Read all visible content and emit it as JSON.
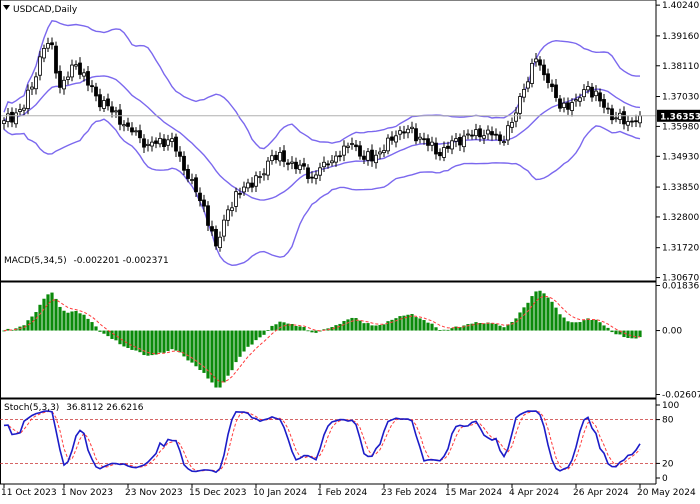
{
  "chart_data": {
    "type": "candlestick",
    "symbol_label": "USDCAD,Daily",
    "current_price": 1.36353,
    "current_price_label": "1.36353",
    "price_axis": {
      "ylim": [
        1.3055,
        1.4035
      ],
      "ticks": [
        1.4024,
        1.3916,
        1.3811,
        1.3703,
        1.3598,
        1.3493,
        1.3385,
        1.328,
        1.3172,
        1.3067
      ],
      "tick_labels": [
        "1.40240",
        "1.39160",
        "1.38110",
        "1.37030",
        "1.35980",
        "1.34930",
        "1.33850",
        "1.32800",
        "1.31720",
        "1.30670"
      ]
    },
    "time_axis": {
      "labels": [
        "11 Oct 2023",
        "1 Nov 2023",
        "23 Nov 2023",
        "15 Dec 2023",
        "10 Jan 2024",
        "1 Feb 2024",
        "23 Feb 2024",
        "15 Mar 2024",
        "4 Apr 2024",
        "26 Apr 2024",
        "20 May 2024"
      ],
      "label_bar_index": [
        0,
        15,
        31,
        47,
        63,
        79,
        95,
        111,
        127,
        143,
        159
      ]
    },
    "close_anchors": [
      [
        0,
        1.3618
      ],
      [
        5,
        1.3662
      ],
      [
        10,
        1.3872
      ],
      [
        12,
        1.3885
      ],
      [
        14,
        1.3735
      ],
      [
        18,
        1.3815
      ],
      [
        23,
        1.3705
      ],
      [
        31,
        1.3598
      ],
      [
        36,
        1.3535
      ],
      [
        42,
        1.3555
      ],
      [
        46,
        1.3415
      ],
      [
        50,
        1.3318
      ],
      [
        53,
        1.3178
      ],
      [
        56,
        1.3305
      ],
      [
        60,
        1.3385
      ],
      [
        64,
        1.3422
      ],
      [
        67,
        1.3495
      ],
      [
        70,
        1.3475
      ],
      [
        74,
        1.3462
      ],
      [
        77,
        1.3418
      ],
      [
        80,
        1.3472
      ],
      [
        84,
        1.3495
      ],
      [
        87,
        1.3538
      ],
      [
        90,
        1.3482
      ],
      [
        94,
        1.3508
      ],
      [
        98,
        1.3565
      ],
      [
        101,
        1.3588
      ],
      [
        105,
        1.3552
      ],
      [
        109,
        1.3495
      ],
      [
        113,
        1.3555
      ],
      [
        117,
        1.3565
      ],
      [
        121,
        1.3585
      ],
      [
        124,
        1.3548
      ],
      [
        127,
        1.3612
      ],
      [
        130,
        1.3728
      ],
      [
        133,
        1.3835
      ],
      [
        136,
        1.3752
      ],
      [
        139,
        1.3662
      ],
      [
        143,
        1.3692
      ],
      [
        146,
        1.3738
      ],
      [
        150,
        1.3665
      ],
      [
        153,
        1.3628
      ],
      [
        156,
        1.3615
      ],
      [
        159,
        1.36353
      ]
    ],
    "bollinger": {
      "period": 20,
      "deviations": 2,
      "color": "#7b68ee"
    },
    "macd": {
      "label": "MACD(5,34,5)",
      "fast": 5,
      "slow": 34,
      "signal": 5,
      "values_label": "-0.002201 -0.002371",
      "ylim": [
        -0.0275,
        0.0198
      ],
      "ticks": [
        0.018367,
        0.0,
        -0.026076
      ],
      "tick_labels": [
        "0.018367",
        "0.00",
        "-0.026076"
      ],
      "histogram_color": "#0a8a0a",
      "signal_color": "#ff3c3c"
    },
    "stochastic": {
      "label": "Stoch(5,3,3)",
      "values_label": "36.8112 26.6216",
      "k_period": 5,
      "d_period": 3,
      "slowing": 3,
      "ylim": [
        0,
        100
      ],
      "ticks": [
        100,
        80,
        20,
        0
      ],
      "tick_labels": [
        "100",
        "80",
        "20",
        "0"
      ],
      "levels": [
        80,
        20
      ],
      "main_color": "#1c1cc8",
      "signal_color": "#ff3c3c"
    },
    "colors": {
      "candle": "#000000",
      "grid_price_line": "#b0b0b0",
      "price_badge_bg": "#000000",
      "price_badge_text": "#ffffff",
      "frame": "#000000"
    }
  }
}
